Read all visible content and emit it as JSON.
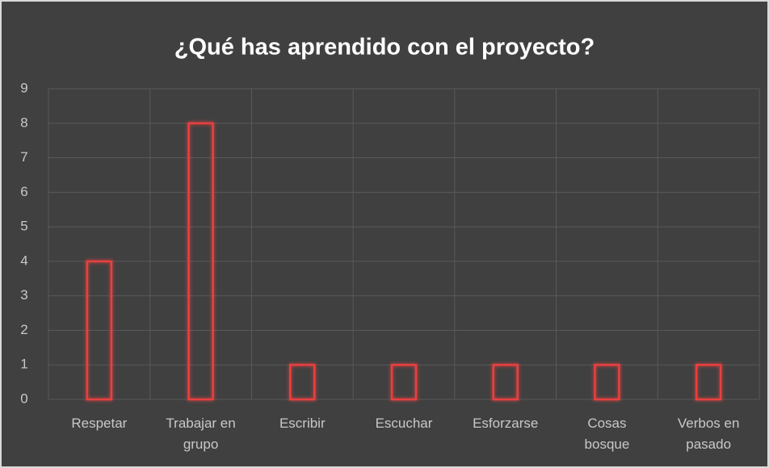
{
  "chart_data": {
    "type": "bar",
    "title": "¿Qué has aprendido con el proyecto?",
    "categories": [
      "Respetar",
      "Trabajar en grupo",
      "Escribir",
      "Escuchar",
      "Esforzarse",
      "Cosas bosque",
      "Verbos en pasado"
    ],
    "values": [
      4,
      8,
      1,
      1,
      1,
      1,
      1
    ],
    "color": "#e8403f",
    "ylim": [
      0,
      9
    ],
    "yticks": [
      0,
      1,
      2,
      3,
      4,
      5,
      6,
      7,
      8,
      9
    ],
    "grid": true
  }
}
